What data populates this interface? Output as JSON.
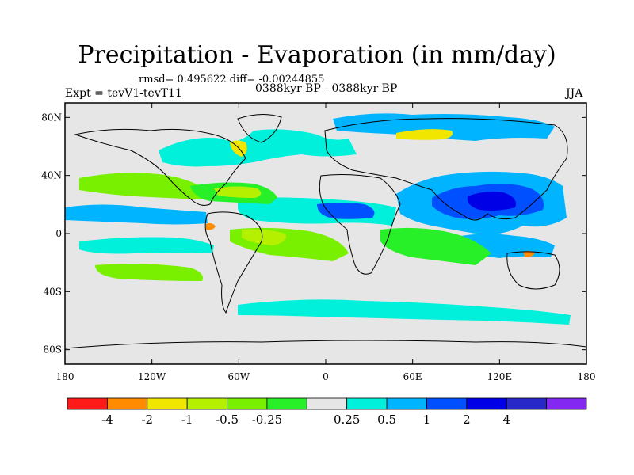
{
  "title": "Precipitation - Evaporation (in mm/day)",
  "stats": "rmsd= 0.495622 diff= -0.00244855",
  "experiment": "Expt = tevV1-tevT11",
  "period": "0388kyr BP - 0388kyr BP",
  "season": "JJA",
  "map": {
    "projection": "cylindrical equidistant",
    "lon_range": [
      -180,
      180
    ],
    "lat_range": [
      -90,
      90
    ],
    "background_color": "#e6e6e6",
    "lat_ticks": [
      {
        "value": 80,
        "label": "80N"
      },
      {
        "value": 40,
        "label": "40N"
      },
      {
        "value": 0,
        "label": "0"
      },
      {
        "value": -40,
        "label": "40S"
      },
      {
        "value": -80,
        "label": "80S"
      }
    ],
    "lon_ticks": [
      {
        "value": -180,
        "label": "180"
      },
      {
        "value": -120,
        "label": "120W"
      },
      {
        "value": -60,
        "label": "60W"
      },
      {
        "value": 0,
        "label": "0"
      },
      {
        "value": 60,
        "label": "60E"
      },
      {
        "value": 120,
        "label": "120E"
      },
      {
        "value": 180,
        "label": "180"
      }
    ]
  },
  "colorbar": {
    "colors": [
      "#ff1a1a",
      "#ff8c00",
      "#f0e600",
      "#b4f000",
      "#78f000",
      "#28f028",
      "#e6e6e6",
      "#00f0dc",
      "#00b4ff",
      "#0050ff",
      "#0000e6",
      "#2828c8",
      "#8228f0"
    ],
    "labels": [
      "-4",
      "-2",
      "-1",
      "-0.5",
      "-0.25",
      "0.25",
      "0.5",
      "1",
      "2",
      "4"
    ]
  }
}
